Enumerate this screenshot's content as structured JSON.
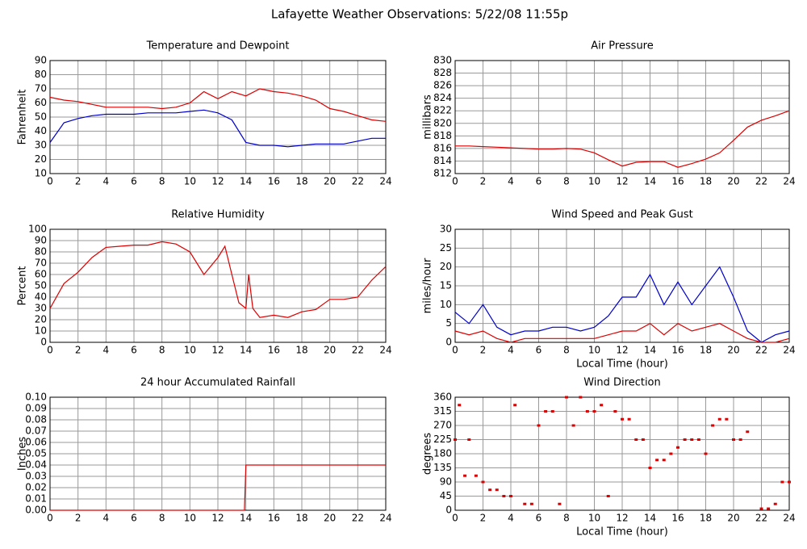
{
  "title": "Lafayette Weather Observations: 5/22/08 11:55p",
  "chart_data": [
    {
      "type": "line",
      "title": "Temperature and Dewpoint",
      "ylabel": "Fahrenheit",
      "x": [
        0,
        1,
        2,
        3,
        4,
        5,
        6,
        7,
        8,
        9,
        10,
        11,
        12,
        13,
        14,
        15,
        16,
        17,
        18,
        19,
        20,
        21,
        22,
        23,
        24
      ],
      "series": [
        {
          "color": "#dd0000",
          "values": [
            64,
            62,
            61,
            59,
            57,
            57,
            57,
            57,
            56,
            57,
            60,
            68,
            63,
            68,
            65,
            70,
            68,
            67,
            65,
            62,
            56,
            54,
            51,
            48,
            47
          ]
        },
        {
          "color": "#0000cc",
          "values": [
            32,
            46,
            49,
            51,
            52,
            52,
            52,
            53,
            53,
            53,
            54,
            55,
            53,
            48,
            32,
            30,
            30,
            29,
            30,
            31,
            31,
            31,
            33,
            35,
            35
          ]
        }
      ],
      "xlim": [
        0,
        24
      ],
      "xticks": [
        0,
        2,
        4,
        6,
        8,
        10,
        12,
        14,
        16,
        18,
        20,
        22,
        24
      ],
      "ylim": [
        10,
        90
      ],
      "yticks": [
        10,
        20,
        30,
        40,
        50,
        60,
        70,
        80,
        90
      ],
      "grid": true
    },
    {
      "type": "line",
      "title": "Air Pressure",
      "ylabel": "millibars",
      "x": [
        0,
        1,
        2,
        3,
        4,
        5,
        6,
        7,
        8,
        9,
        10,
        11,
        12,
        13,
        14,
        15,
        16,
        17,
        18,
        19,
        20,
        21,
        22,
        23,
        24
      ],
      "series": [
        {
          "color": "#dd0000",
          "values": [
            816.4,
            816.4,
            816.3,
            816.2,
            816.1,
            816,
            815.9,
            815.9,
            816,
            815.9,
            815.3,
            814.2,
            813.2,
            813.8,
            813.9,
            813.9,
            813,
            813.6,
            814.3,
            815.3,
            817.3,
            819.4,
            820.5,
            821.2,
            822
          ]
        }
      ],
      "xlim": [
        0,
        24
      ],
      "xticks": [
        0,
        2,
        4,
        6,
        8,
        10,
        12,
        14,
        16,
        18,
        20,
        22,
        24
      ],
      "ylim": [
        812,
        830
      ],
      "yticks": [
        812,
        814,
        816,
        818,
        820,
        822,
        824,
        826,
        828,
        830
      ],
      "grid": true
    },
    {
      "type": "line",
      "title": "Relative Humidity",
      "ylabel": "Percent",
      "x": [
        0,
        1,
        2,
        3,
        4,
        5,
        6,
        7,
        8,
        9,
        10,
        11,
        12,
        12.5,
        13,
        13.5,
        14,
        14.2,
        14.5,
        15,
        16,
        17,
        18,
        19,
        20,
        21,
        22,
        23,
        24
      ],
      "series": [
        {
          "color": "#dd0000",
          "values": [
            30,
            52,
            62,
            75,
            84,
            85,
            86,
            86,
            89,
            87,
            80,
            60,
            75,
            85,
            60,
            35,
            30,
            60,
            30,
            22,
            24,
            22,
            27,
            29,
            38,
            38,
            40,
            55,
            67
          ]
        }
      ],
      "xlim": [
        0,
        24
      ],
      "xticks": [
        0,
        2,
        4,
        6,
        8,
        10,
        12,
        14,
        16,
        18,
        20,
        22,
        24
      ],
      "ylim": [
        0,
        100
      ],
      "yticks": [
        0,
        10,
        20,
        30,
        40,
        50,
        60,
        70,
        80,
        90,
        100
      ],
      "grid": true
    },
    {
      "type": "line",
      "title": "Wind Speed and Peak Gust",
      "ylabel": "miles/hour",
      "xlabel": "Local Time (hour)",
      "x": [
        0,
        1,
        2,
        3,
        4,
        5,
        6,
        7,
        8,
        9,
        10,
        11,
        12,
        13,
        14,
        15,
        16,
        17,
        18,
        19,
        20,
        21,
        22,
        23,
        24
      ],
      "series": [
        {
          "color": "#0000cc",
          "values": [
            8,
            5,
            10,
            4,
            2,
            3,
            3,
            4,
            4,
            3,
            4,
            7,
            12,
            12,
            18,
            10,
            16,
            10,
            15,
            20,
            12,
            3,
            0,
            2,
            3
          ]
        },
        {
          "color": "#dd0000",
          "values": [
            3,
            2,
            3,
            1,
            0,
            1,
            1,
            1,
            1,
            1,
            1,
            2,
            3,
            3,
            5,
            2,
            5,
            3,
            4,
            5,
            3,
            1,
            0,
            0,
            1
          ]
        }
      ],
      "xlim": [
        0,
        24
      ],
      "xticks": [
        0,
        2,
        4,
        6,
        8,
        10,
        12,
        14,
        16,
        18,
        20,
        22,
        24
      ],
      "ylim": [
        0,
        30
      ],
      "yticks": [
        0,
        5,
        10,
        15,
        20,
        25,
        30
      ],
      "grid": true
    },
    {
      "type": "line",
      "title": "24 hour Accumulated Rainfall",
      "ylabel": "Inches",
      "x": [
        0,
        13.9,
        14,
        24
      ],
      "series": [
        {
          "color": "#dd0000",
          "values": [
            0,
            0,
            0.04,
            0.04
          ]
        }
      ],
      "xlim": [
        0,
        24
      ],
      "xticks": [
        0,
        2,
        4,
        6,
        8,
        10,
        12,
        14,
        16,
        18,
        20,
        22,
        24
      ],
      "ylim": [
        0,
        0.1
      ],
      "yticks": [
        {
          "value": 0,
          "label": "0.00"
        },
        {
          "value": 0.01,
          "label": "0.01"
        },
        {
          "value": 0.02,
          "label": "0.02"
        },
        {
          "value": 0.03,
          "label": "0.03"
        },
        {
          "value": 0.04,
          "label": "0.04"
        },
        {
          "value": 0.05,
          "label": "0.05"
        },
        {
          "value": 0.06,
          "label": "0.06"
        },
        {
          "value": 0.07,
          "label": "0.07"
        },
        {
          "value": 0.08,
          "label": "0.08"
        },
        {
          "value": 0.09,
          "label": "0.09"
        },
        {
          "value": 0.1,
          "label": "0.10"
        }
      ],
      "grid": true
    },
    {
      "type": "scatter",
      "title": "Wind Direction",
      "ylabel": "degrees",
      "xlabel": "Local Time (hour)",
      "x": [
        0,
        0.3,
        0.7,
        1,
        1.5,
        2,
        2.5,
        3,
        3.5,
        4,
        4.3,
        5,
        5.5,
        6,
        6.5,
        7,
        7.5,
        8,
        8.5,
        9,
        9.5,
        10,
        10.5,
        11,
        11.5,
        12,
        12.5,
        13,
        13.5,
        14,
        14.5,
        15,
        15.5,
        16,
        16.5,
        17,
        17.5,
        18,
        18.5,
        19,
        19.5,
        20,
        20.5,
        21,
        22,
        22.5,
        23,
        23.5,
        24
      ],
      "series": [
        {
          "color": "#dd0000",
          "values": [
            225,
            335,
            110,
            225,
            110,
            90,
            65,
            65,
            45,
            45,
            335,
            20,
            20,
            270,
            315,
            315,
            20,
            360,
            270,
            360,
            315,
            315,
            335,
            45,
            315,
            290,
            290,
            225,
            225,
            135,
            160,
            160,
            180,
            200,
            225,
            225,
            225,
            180,
            270,
            290,
            290,
            225,
            225,
            250,
            5,
            5,
            20,
            90,
            90
          ]
        }
      ],
      "xlim": [
        0,
        24
      ],
      "xticks": [
        0,
        2,
        4,
        6,
        8,
        10,
        12,
        14,
        16,
        18,
        20,
        22,
        24
      ],
      "ylim": [
        0,
        360
      ],
      "yticks": [
        0,
        45,
        90,
        135,
        180,
        225,
        270,
        315,
        360
      ],
      "grid": true
    }
  ]
}
